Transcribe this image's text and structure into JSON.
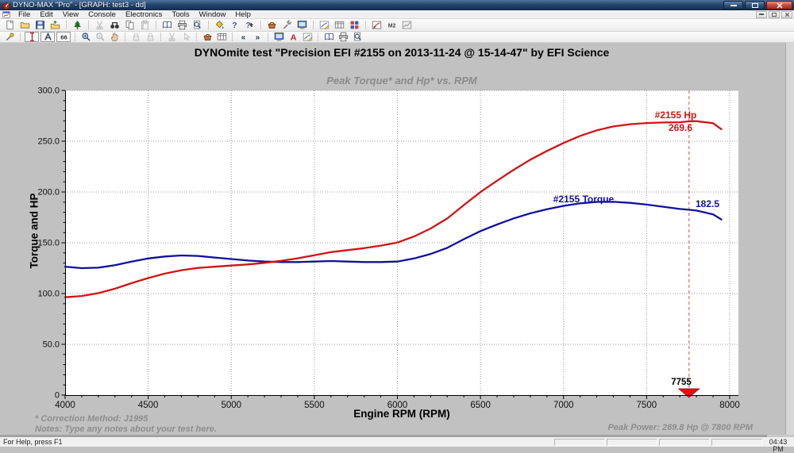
{
  "window": {
    "title": "DYNO-MAX \"Pro\" - [GRAPH: test3 - dd]"
  },
  "menu": {
    "items": [
      "File",
      "Edit",
      "View",
      "Console",
      "Electronics",
      "Tools",
      "Window",
      "Help"
    ]
  },
  "toolbar_main": [
    {
      "name": "new-button",
      "icon": "page"
    },
    {
      "name": "open-button",
      "icon": "folder"
    },
    {
      "name": "save-button",
      "icon": "disk"
    },
    {
      "name": "import-button",
      "icon": "folderout"
    },
    {
      "name": "tree-view-button",
      "icon": "tree",
      "sep": true
    },
    {
      "name": "cut-button",
      "icon": "cut",
      "disabled": true,
      "sep": true
    },
    {
      "name": "find-button",
      "icon": "binoc"
    },
    {
      "name": "copy-button",
      "icon": "copy"
    },
    {
      "name": "paste-button",
      "icon": "paste",
      "disabled": true
    },
    {
      "name": "notebook-button",
      "icon": "book",
      "sep": true
    },
    {
      "name": "print-button",
      "icon": "print"
    },
    {
      "name": "print-preview-button",
      "icon": "preview"
    },
    {
      "name": "fill-button",
      "icon": "bucket",
      "sep": true
    },
    {
      "name": "help-button",
      "icon": "help"
    },
    {
      "name": "context-help-button",
      "icon": "helparrow"
    },
    {
      "name": "basket-button",
      "icon": "basket",
      "sep": true
    },
    {
      "name": "tools-button",
      "icon": "tools"
    },
    {
      "name": "console-button",
      "icon": "monitor"
    },
    {
      "name": "edit-graph-button",
      "icon": "penchart",
      "sep": true
    },
    {
      "name": "data-table-button",
      "icon": "table"
    },
    {
      "name": "grid-config-button",
      "icon": "gridrb"
    },
    {
      "name": "gauge-button",
      "icon": "gauge",
      "sep": true
    },
    {
      "name": "m2-button",
      "icon": "m2"
    },
    {
      "name": "chart-button",
      "icon": "chartg"
    }
  ],
  "toolbar_graph": [
    {
      "name": "dock-pin-button",
      "icon": "pin"
    },
    {
      "name": "cursor-ibeam-button",
      "icon": "ibeam",
      "framed": true,
      "sep": true
    },
    {
      "name": "caliper-button",
      "icon": "caliper",
      "framed": true
    },
    {
      "name": "glasses-66-button",
      "icon": "g66",
      "framed": true
    },
    {
      "name": "zoom-in-button",
      "icon": "zoomin",
      "sep": true
    },
    {
      "name": "zoom-out-button",
      "icon": "zoomout",
      "disabled": true
    },
    {
      "name": "pan-button",
      "icon": "hand"
    },
    {
      "name": "lock-x-button",
      "icon": "lock",
      "disabled": true,
      "sep": true
    },
    {
      "name": "lock-y-button",
      "icon": "lock",
      "disabled": true
    },
    {
      "name": "clip-button",
      "icon": "cut",
      "disabled": true,
      "sep": true
    },
    {
      "name": "pick-button",
      "icon": "cursor",
      "disabled": true
    },
    {
      "name": "basket-graph-button",
      "icon": "basket",
      "sep": true
    },
    {
      "name": "table-graph-button",
      "icon": "table"
    },
    {
      "name": "prev-run-button",
      "icon": "laquo",
      "sep": true
    },
    {
      "name": "next-run-button",
      "icon": "raquo"
    },
    {
      "name": "console-graph-button",
      "icon": "monitor",
      "sep": true
    },
    {
      "name": "font-button",
      "icon": "redA"
    },
    {
      "name": "annotate-button",
      "icon": "penchart"
    },
    {
      "name": "book-graph-button",
      "icon": "book",
      "sep": true
    },
    {
      "name": "print-graph-button",
      "icon": "print"
    },
    {
      "name": "preview-graph-button",
      "icon": "preview"
    }
  ],
  "chart_data": {
    "type": "line",
    "title": "DYNOmite test \"Precision EFI #2155 on 2013-11-24 @ 15-14-47\" by EFI Science",
    "subtitle": "Peak Torque* and Hp* vs. RPM",
    "xlabel": "Engine RPM (RPM)",
    "ylabel": "Torque and HP",
    "xlim": [
      4000,
      8000
    ],
    "ylim": [
      0,
      300
    ],
    "x_ticks": [
      4000,
      4500,
      5000,
      5500,
      6000,
      6500,
      7000,
      7500,
      8000
    ],
    "y_ticks": [
      0,
      50,
      100,
      150,
      200,
      250,
      300
    ],
    "y_tick_labels": [
      "0",
      "50.0",
      "100.0",
      "150.0",
      "200.0",
      "250.0",
      "300.0"
    ],
    "x_minor_step": 100,
    "y_minor_step": 10,
    "grid": true,
    "legend_position": "inline-labels",
    "cursor": {
      "rpm": 7755,
      "label": "7755"
    },
    "x": [
      4000,
      4100,
      4200,
      4300,
      4400,
      4500,
      4600,
      4700,
      4800,
      4900,
      5000,
      5100,
      5200,
      5300,
      5400,
      5500,
      5600,
      5700,
      5800,
      5900,
      6000,
      6100,
      6200,
      6300,
      6400,
      6500,
      6600,
      6700,
      6800,
      6900,
      7000,
      7100,
      7200,
      7300,
      7400,
      7500,
      7600,
      7700,
      7755,
      7800,
      7900,
      7950
    ],
    "series": [
      {
        "name": "#2155 Hp",
        "color": "#d01414",
        "peak_label": "269.6",
        "values": [
          96.3,
          97.6,
          100.4,
          104.8,
          110.2,
          115.2,
          119.6,
          123.0,
          125.2,
          126.4,
          127.6,
          128.7,
          130.2,
          132.2,
          134.7,
          137.7,
          140.8,
          142.7,
          144.7,
          147.2,
          150.2,
          156.2,
          164.1,
          173.9,
          187.1,
          199.9,
          211.1,
          221.9,
          231.8,
          240.4,
          248.3,
          255.2,
          260.7,
          264.5,
          266.7,
          267.9,
          268.4,
          268.7,
          269.6,
          269.8,
          267.7,
          261.9
        ]
      },
      {
        "name": "#2155 Torque",
        "color": "#10109e",
        "peak_label": "182.5",
        "values": [
          126.5,
          125.0,
          125.5,
          128.0,
          131.5,
          134.5,
          136.5,
          137.5,
          137.0,
          135.5,
          134.0,
          132.5,
          131.5,
          131.0,
          131.0,
          131.5,
          132.0,
          131.5,
          131.0,
          131.0,
          131.5,
          134.5,
          139.0,
          145.0,
          153.5,
          161.5,
          168.0,
          174.0,
          179.0,
          183.0,
          186.3,
          188.8,
          190.2,
          190.3,
          189.3,
          187.6,
          185.5,
          183.3,
          182.5,
          181.7,
          178.0,
          173.0
        ]
      }
    ]
  },
  "footer": {
    "correction": "* Correction Method: J1995",
    "notes": "Notes: Type any notes about your test here.",
    "peak_power": "Peak Power: 269.8 Hp @ 7800 RPM"
  },
  "statusbar": {
    "help_text": "For Help, press F1",
    "time": "04:43 PM"
  }
}
